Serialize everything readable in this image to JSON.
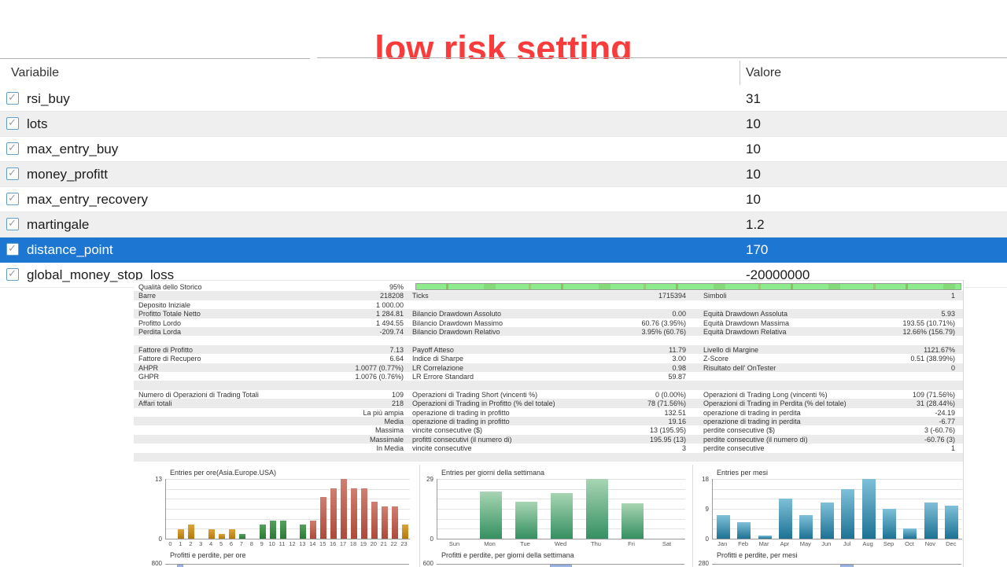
{
  "title": "low risk setting",
  "colors": {
    "title_red": "#fa3b3b",
    "selection_blue": "#1e76d3",
    "row_alt_gray": "#efefef",
    "quality_bar_green": "#8deb8d",
    "session_asia_orange": "#c8861e",
    "session_europe_green": "#3a8a44",
    "session_usa_red": "#bb584a",
    "weekday_green": "#3f9467",
    "month_teal": "#2a7d9c",
    "stub_bar_blue": "#9db6e3"
  },
  "param_table": {
    "columns": {
      "variable": "Variabile",
      "value": "Valore"
    },
    "rows": [
      {
        "name": "rsi_buy",
        "value": "31",
        "checked": true,
        "selected": false
      },
      {
        "name": "lots",
        "value": "10",
        "checked": true,
        "selected": false
      },
      {
        "name": "max_entry_buy",
        "value": "10",
        "checked": true,
        "selected": false
      },
      {
        "name": "money_profitt",
        "value": "10",
        "checked": true,
        "selected": false
      },
      {
        "name": "max_entry_recovery",
        "value": "10",
        "checked": true,
        "selected": false
      },
      {
        "name": "martingale",
        "value": "1.2",
        "checked": true,
        "selected": false
      },
      {
        "name": "distance_point",
        "value": "170",
        "checked": true,
        "selected": true
      },
      {
        "name": "global_money_stop_loss",
        "value": "-20000000",
        "checked": true,
        "selected": false
      }
    ]
  },
  "report": {
    "quality": {
      "label": "Qualità dello Storico",
      "value": "95%"
    },
    "sections": [
      [
        [
          "Barre",
          "218208",
          "Ticks",
          "1715394",
          "Simboli",
          "1"
        ],
        [
          "Deposito Iniziale",
          "1 000.00",
          "",
          "",
          "",
          ""
        ],
        [
          "Profitto Totale Netto",
          "1 284.81",
          "Bilancio Drawdown Assoluto",
          "0.00",
          "Equità Drawdown Assoluta",
          "5.93"
        ],
        [
          "Profitto Lordo",
          "1 494.55",
          "Bilancio Drawdown Massimo",
          "60.76 (3.95%)",
          "Equità Drawdown Massima",
          "193.55 (10.71%)"
        ],
        [
          "Perdita Lorda",
          "-209.74",
          "Bilancio Drawdown Relativo",
          "3.95% (60.76)",
          "Equità Drawdown Relativa",
          "12.66% (156.79)"
        ]
      ],
      [
        [
          "Fattore di Profitto",
          "7.13",
          "Payoff Atteso",
          "11.79",
          "Livello di Margine",
          "1121.67%"
        ],
        [
          "Fattore di Recupero",
          "6.64",
          "Indice di Sharpe",
          "3.00",
          "Z-Score",
          "0.51 (38.99%)"
        ],
        [
          "AHPR",
          "1.0077 (0.77%)",
          "LR Correlazione",
          "0.98",
          "Risultato dell' OnTester",
          "0"
        ],
        [
          "GHPR",
          "1.0076 (0.76%)",
          "LR Errore Standard",
          "59.87",
          "",
          ""
        ]
      ],
      [
        [
          "Numero di Operazioni di Trading Totali",
          "109",
          "Operazioni di Trading Short (vincenti %)",
          "0 (0.00%)",
          "Operazioni di Trading Long (vincenti %)",
          "109 (71.56%)"
        ],
        [
          "Affari totali",
          "218",
          "Operazioni di Trading in Profitto (% del totale)",
          "78 (71.56%)",
          "Operazioni di Trading in Perdita (% del totale)",
          "31 (28.44%)"
        ],
        [
          "",
          "La più ampia",
          "operazione di trading in profitto",
          "132.51",
          "operazione di trading in perdita",
          "-24.19"
        ],
        [
          "",
          "Media",
          "operazione di trading in profitto",
          "19.16",
          "operazione di trading in perdita",
          "-6.77"
        ],
        [
          "",
          "Massima",
          "vincite consecutive ($)",
          "13 (195.95)",
          "perdite consecutive ($)",
          "3 (-60.76)"
        ],
        [
          "",
          "Massimale",
          "profitti consecutivi (il numero di)",
          "195.95 (13)",
          "perdite consecutive (il numero di)",
          "-60.76 (3)"
        ],
        [
          "",
          "In Media",
          "vincite consecutive",
          "3",
          "perdite consecutive",
          "1"
        ]
      ]
    ]
  },
  "chart_data": [
    {
      "type": "bar",
      "title": "Entries per ore(Asia.Europe.USA)",
      "categories": [
        "0",
        "1",
        "2",
        "3",
        "4",
        "5",
        "6",
        "7",
        "8",
        "9",
        "10",
        "11",
        "12",
        "13",
        "14",
        "15",
        "16",
        "17",
        "18",
        "19",
        "20",
        "21",
        "22",
        "23"
      ],
      "values": [
        0,
        2,
        3,
        0,
        2,
        1,
        2,
        1,
        0,
        3,
        4,
        4,
        0,
        3,
        4,
        9,
        11,
        13,
        11,
        11,
        8,
        7,
        7,
        3
      ],
      "bar_groups": [
        "asia",
        "asia",
        "asia",
        "asia",
        "asia",
        "asia",
        "asia",
        "europe",
        "europe",
        "europe",
        "europe",
        "europe",
        "europe",
        "europe",
        "usa",
        "usa",
        "usa",
        "usa",
        "usa",
        "usa",
        "usa",
        "usa",
        "usa",
        "asia"
      ],
      "palette": {
        "asia": [
          "#dca33a",
          "#b47a0c"
        ],
        "europe": [
          "#56a05e",
          "#2c7a37"
        ],
        "usa": [
          "#cf7f70",
          "#ad4a3b"
        ]
      },
      "ylim": [
        0,
        13
      ],
      "yticks": [
        13,
        0
      ],
      "grid": true,
      "legend": "none"
    },
    {
      "type": "bar",
      "title": "Entries per giorni della settimana",
      "categories": [
        "Sun",
        "Mon",
        "Tue",
        "Wed",
        "Thu",
        "Fri",
        "Sat"
      ],
      "values": [
        0,
        23,
        18,
        22,
        29,
        17,
        0
      ],
      "palette": {
        "default": [
          "#a8d5b3",
          "#359062"
        ]
      },
      "ylim": [
        0,
        29
      ],
      "yticks": [
        29,
        0
      ],
      "grid": true,
      "legend": "none"
    },
    {
      "type": "bar",
      "title": "Entries per mesi",
      "categories": [
        "Jan",
        "Feb",
        "Mar",
        "Apr",
        "May",
        "Jun",
        "Jul",
        "Aug",
        "Sep",
        "Oct",
        "Nov",
        "Dec"
      ],
      "values": [
        7,
        5,
        1,
        12,
        7,
        11,
        15,
        18,
        9,
        3,
        11,
        10
      ],
      "palette": {
        "default": [
          "#7fc0d8",
          "#1d7294"
        ]
      },
      "ylim": [
        0,
        18
      ],
      "yticks": [
        18,
        9,
        0
      ],
      "grid": true,
      "legend": "none"
    },
    {
      "type": "bar",
      "partial": true,
      "title": "Profitti e perdite, per ore",
      "y_top_label": "800",
      "visible_bar_category": "1"
    },
    {
      "type": "bar",
      "partial": true,
      "title": "Profitti e perdite, per giorni della settimana",
      "y_top_label": "600",
      "visible_bar_category": "Wed"
    },
    {
      "type": "bar",
      "partial": true,
      "title": "Profitti e perdite, per mesi",
      "y_top_label": "280",
      "visible_bar_category": "Jul"
    }
  ]
}
